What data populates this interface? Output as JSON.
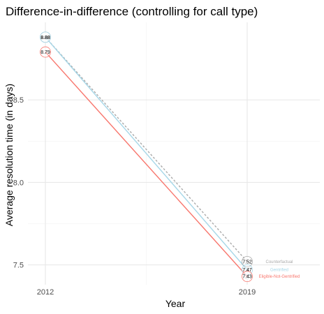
{
  "chart_data": {
    "type": "line",
    "title": "Difference-in-difference (controlling for call type)",
    "xlabel": "Year",
    "ylabel": "Average resolution time (in days)",
    "x": [
      "2012",
      "2019"
    ],
    "ylim": [
      7.38,
      8.97
    ],
    "y_ticks": [
      "7.5",
      "8.0",
      "8.5"
    ],
    "y_tick_values": [
      7.5,
      8.0,
      8.5
    ],
    "grid": true,
    "series": [
      {
        "name": "Counterfactual",
        "values": [
          8.88,
          7.52
        ],
        "color": "#aaaaaa",
        "dash": true,
        "labels": [
          "8.88",
          "7.52"
        ]
      },
      {
        "name": "Gentrified",
        "values": [
          8.88,
          7.47
        ],
        "color": "#a6d7e8",
        "dash": false,
        "labels": [
          "8.88",
          "7.47"
        ]
      },
      {
        "name": "Eligible-Not-Gentrified",
        "values": [
          8.79,
          7.43
        ],
        "color": "#f8766d",
        "dash": false,
        "labels": [
          "8.79",
          "7.43"
        ]
      }
    ]
  }
}
